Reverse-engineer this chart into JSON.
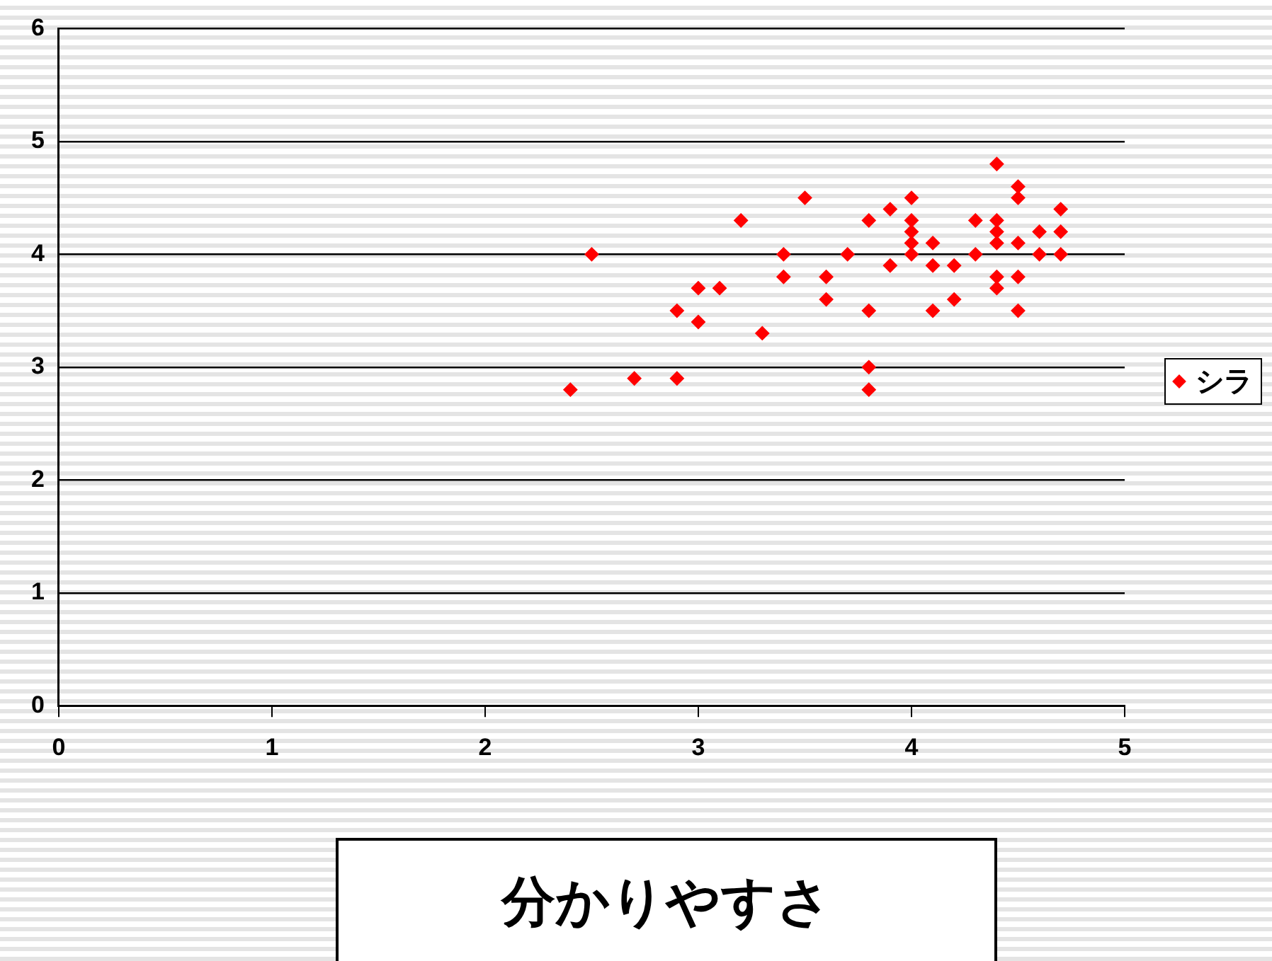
{
  "chart_data": {
    "type": "scatter",
    "xlabel": "分かりやすさ",
    "xlim": [
      0,
      5
    ],
    "xticks": [
      0,
      1,
      2,
      3,
      4,
      5
    ],
    "ylim": [
      0,
      6
    ],
    "yticks": [
      0,
      1,
      2,
      3,
      4,
      5,
      6
    ],
    "grid": "y",
    "legend": "right",
    "marker": "diamond",
    "series": [
      {
        "name": "シラ",
        "color": "#ff0000",
        "x": [
          2.4,
          2.5,
          2.7,
          2.9,
          2.9,
          3.0,
          3.0,
          3.1,
          3.2,
          3.3,
          3.4,
          3.4,
          3.5,
          3.6,
          3.6,
          3.7,
          3.8,
          3.8,
          3.8,
          3.8,
          3.9,
          3.9,
          4.0,
          4.0,
          4.0,
          4.0,
          4.0,
          4.1,
          4.1,
          4.1,
          4.2,
          4.2,
          4.3,
          4.3,
          4.4,
          4.4,
          4.4,
          4.4,
          4.4,
          4.4,
          4.5,
          4.5,
          4.5,
          4.5,
          4.5,
          4.6,
          4.6,
          4.7,
          4.7,
          4.7
        ],
        "values": [
          2.8,
          4.0,
          2.9,
          2.9,
          3.5,
          3.7,
          3.4,
          3.7,
          4.3,
          3.3,
          4.0,
          3.8,
          4.5,
          3.8,
          3.6,
          4.0,
          4.3,
          3.5,
          3.0,
          2.8,
          4.4,
          3.9,
          4.5,
          4.3,
          4.2,
          4.1,
          4.0,
          4.1,
          3.9,
          3.5,
          3.9,
          3.6,
          4.3,
          4.0,
          4.8,
          4.3,
          4.2,
          4.1,
          3.8,
          3.7,
          4.6,
          4.5,
          4.1,
          3.8,
          3.5,
          4.2,
          4.0,
          4.4,
          4.2,
          4.0
        ]
      }
    ]
  }
}
